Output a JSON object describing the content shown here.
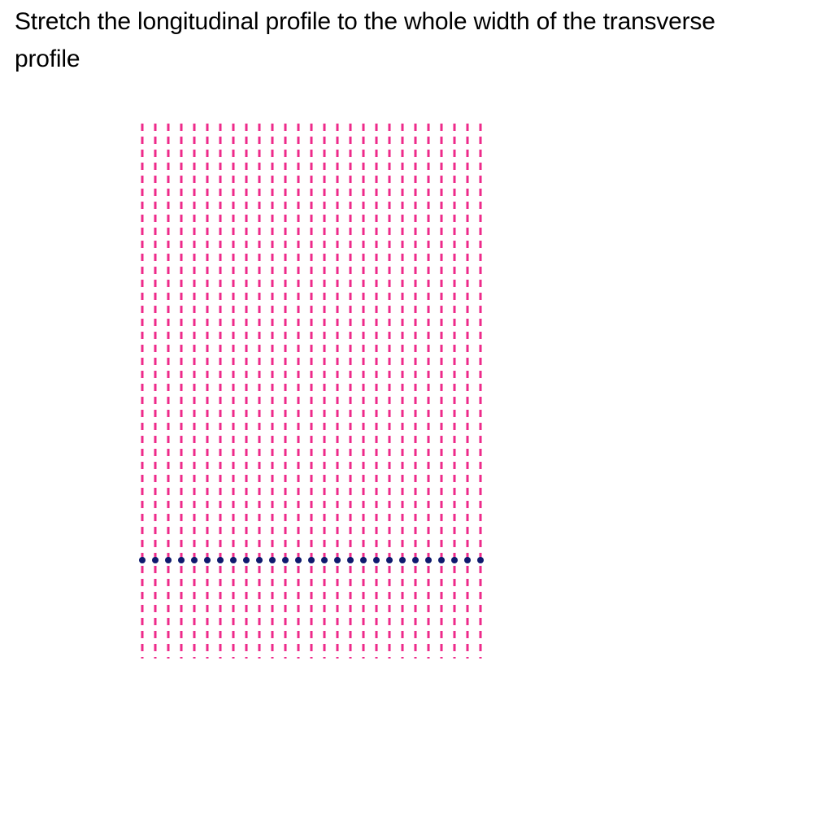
{
  "instruction": {
    "text": "Stretch the longitudinal profile to the whole width of the transverse profile"
  },
  "diagram": {
    "longitudinal_profile_count": 27,
    "transverse_profile_point_count": 27,
    "colors": {
      "longitudinal_profile": "#ee2a8a",
      "transverse_profile": "#0f1a6e",
      "background": "#ffffff"
    }
  }
}
